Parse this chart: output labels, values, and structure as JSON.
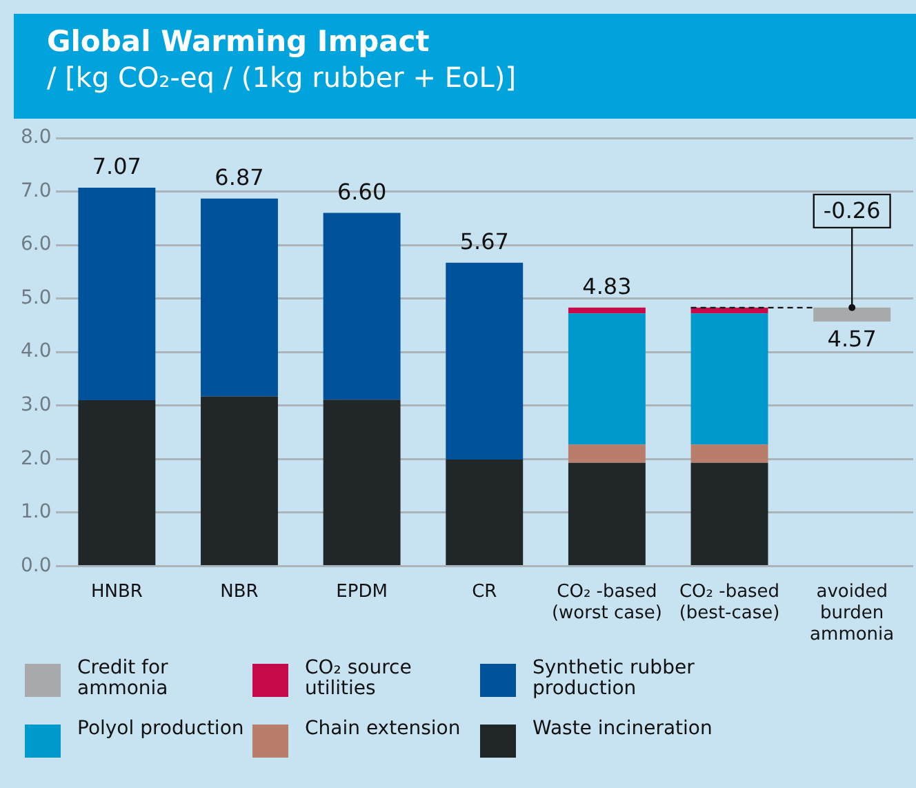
{
  "chart_data": {
    "type": "bar",
    "title": "Global Warming Impact",
    "subtitle": "/ [kg CO₂-eq / (1kg rubber + EoL)]",
    "categories": [
      "HNBR",
      "NBR",
      "EPDM",
      "CR",
      "CO₂ -based (worst case)",
      "CO₂ -based (best-case)",
      "avoided burden ammonia"
    ],
    "stacked": true,
    "series": [
      {
        "name": "Waste incineration",
        "color": "#212629",
        "values": [
          3.1,
          3.17,
          3.11,
          1.99,
          1.93,
          1.93,
          null
        ]
      },
      {
        "name": "Chain extension",
        "color": "#b97e6b",
        "values": [
          null,
          null,
          null,
          null,
          0.34,
          0.34,
          null
        ]
      },
      {
        "name": "Polyol production",
        "color": "#0099cc",
        "values": [
          null,
          null,
          null,
          null,
          2.45,
          2.45,
          null
        ]
      },
      {
        "name": "Synthetic rubber production",
        "color": "#00529b",
        "values": [
          3.97,
          3.7,
          3.49,
          3.68,
          null,
          null,
          null
        ]
      },
      {
        "name": "CO₂ source utilities",
        "color": "#c8094a",
        "values": [
          null,
          null,
          null,
          null,
          0.11,
          0.11,
          null
        ]
      },
      {
        "name": "Credit for ammonia",
        "color": "#a7a9ab",
        "values": [
          null,
          null,
          null,
          null,
          null,
          null,
          -0.26
        ],
        "base": [
          null,
          null,
          null,
          null,
          null,
          null,
          4.83
        ],
        "value_labels": [
          null,
          null,
          null,
          null,
          null,
          null,
          "-0.26"
        ]
      }
    ],
    "totals": [
      "7.07",
      "6.87",
      "6.60",
      "5.67",
      "4.83",
      null,
      null
    ],
    "annotations": [
      {
        "text": "4.57",
        "x": "avoided burden ammonia",
        "y": 4.57
      }
    ],
    "ylim": [
      0,
      8
    ],
    "yticks": [
      {
        "value": 0,
        "label": "0.0"
      },
      {
        "value": 1,
        "label": "1.0"
      },
      {
        "value": 2,
        "label": "2.0"
      },
      {
        "value": 3,
        "label": "3.0"
      },
      {
        "value": 4,
        "label": "4.0"
      },
      {
        "value": 5,
        "label": "5.0"
      },
      {
        "value": 6,
        "label": "6.0"
      },
      {
        "value": 7,
        "label": "7.0"
      },
      {
        "value": 8,
        "label": "8.0"
      }
    ],
    "grid": "y",
    "legend": "bottom"
  }
}
